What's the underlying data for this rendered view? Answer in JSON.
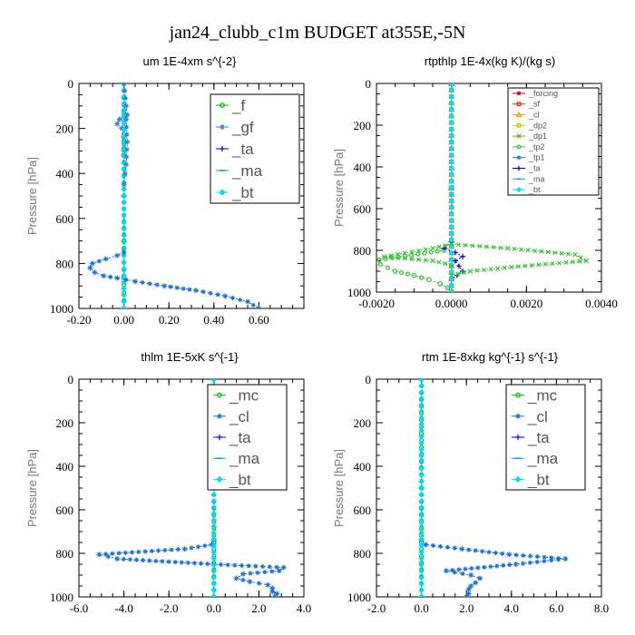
{
  "figure_title": "jan24_clubb_c1m  BUDGET at355E,-5N",
  "chart_data": [
    {
      "type": "line",
      "title": "um  1E-4xm s^{-2}",
      "xlabel": "",
      "ylabel": "Pressure [hPa]",
      "xlim": [
        -0.2,
        0.8
      ],
      "ylim": [
        1000,
        0
      ],
      "y_inverted": true,
      "xticks": [
        -0.2,
        0,
        0.2,
        0.4,
        0.6
      ],
      "xtick_labels": [
        "-0.20",
        "0.00",
        "0.20",
        "0.40",
        "0.60"
      ],
      "yticks": [
        0,
        200,
        400,
        600,
        800,
        1000
      ],
      "ytick_labels": [
        "0",
        "200",
        "400",
        "600",
        "800",
        "1000"
      ],
      "legend_position": "top-right",
      "legend_font": "large",
      "series": [
        {
          "name": "_f",
          "color": "#00c000",
          "marker": "circle",
          "x": [
            0,
            0,
            0,
            0,
            0,
            0,
            0
          ],
          "y": [
            0,
            160,
            320,
            500,
            700,
            860,
            1000
          ]
        },
        {
          "name": "_gf",
          "color": "#2f7fd0",
          "marker": "star",
          "x": [
            0,
            -0.02,
            -0.03,
            -0.01,
            0,
            0
          ],
          "y": [
            120,
            160,
            180,
            200,
            240,
            300
          ]
        },
        {
          "name": "_ta",
          "color": "#0000e0",
          "marker": "plus",
          "x": [
            0,
            0,
            0
          ],
          "y": [
            0,
            500,
            1000
          ]
        },
        {
          "name": "_ma",
          "color": "#00a0ff",
          "marker": "dash",
          "x": [
            0,
            0,
            0
          ],
          "y": [
            0,
            500,
            1000
          ]
        },
        {
          "name": "_bt",
          "color": "#00d8ff",
          "marker": "diamond",
          "x": [
            0,
            0,
            0
          ],
          "y": [
            0,
            500,
            1000
          ]
        },
        {
          "name": "",
          "color": "#1a70d0",
          "marker": "star",
          "x": [
            0,
            -0.03,
            -0.08,
            -0.14,
            -0.15,
            -0.13,
            -0.09,
            -0.03,
            0.05,
            0.18,
            0.32,
            0.45,
            0.55,
            0.6
          ],
          "y": [
            750,
            765,
            780,
            800,
            820,
            840,
            855,
            865,
            880,
            900,
            920,
            945,
            970,
            1000
          ]
        },
        {
          "name": "",
          "color": "#2f7fd0",
          "marker": "star",
          "x": [
            0,
            0.01,
            0.015,
            0.01,
            0.015,
            0.01,
            0.005,
            0
          ],
          "y": [
            0,
            100,
            140,
            160,
            260,
            360,
            400,
            450
          ]
        }
      ]
    },
    {
      "type": "line",
      "title": "rtpthlp  1E-4x(kg K)/(kg s)",
      "xlabel": "",
      "ylabel": "Pressure [hPa]",
      "xlim": [
        -0.002,
        0.004
      ],
      "ylim": [
        1000,
        0
      ],
      "y_inverted": true,
      "xticks": [
        -0.002,
        0,
        0.002,
        0.004
      ],
      "xtick_labels": [
        "-0.0020",
        "0.0000",
        "0.0020",
        "0.0040"
      ],
      "yticks": [
        0,
        200,
        400,
        600,
        800,
        1000
      ],
      "ytick_labels": [
        "0",
        "200",
        "400",
        "600",
        "800",
        "1000"
      ],
      "legend_position": "top-right",
      "legend_font": "small",
      "series": [
        {
          "name": "_forcing",
          "color": "#d00000",
          "marker": "star",
          "x": [
            0,
            0,
            0
          ],
          "y": [
            0,
            500,
            1000
          ]
        },
        {
          "name": "_sf",
          "color": "#e03000",
          "marker": "square",
          "x": [
            0,
            0,
            0
          ],
          "y": [
            0,
            500,
            1000
          ]
        },
        {
          "name": "_cl",
          "color": "#f0a000",
          "marker": "triangle",
          "x": [
            0,
            0,
            0
          ],
          "y": [
            0,
            500,
            1000
          ]
        },
        {
          "name": "_dp2",
          "color": "#d0c000",
          "marker": "square",
          "x": [
            0,
            0,
            0
          ],
          "y": [
            0,
            500,
            1000
          ]
        },
        {
          "name": "_dp1",
          "color": "#70b000",
          "marker": "x",
          "x": [
            0,
            0,
            0
          ],
          "y": [
            0,
            500,
            1000
          ]
        },
        {
          "name": "_tp2",
          "color": "#40c040",
          "marker": "circle",
          "x": [
            0,
            -0.0002,
            -0.0021,
            -0.0015,
            -0.001,
            -0.0006,
            -0.0003,
            -0.0001,
            0
          ],
          "y": [
            780,
            800,
            850,
            900,
            920,
            940,
            960,
            980,
            1000
          ]
        },
        {
          "name": "_tp1",
          "color": "#2080c0",
          "marker": "star",
          "x": [
            0,
            0,
            0
          ],
          "y": [
            0,
            500,
            1000
          ]
        },
        {
          "name": "_ta",
          "color": "#0000c0",
          "marker": "plus",
          "x": [
            0,
            -0.0002,
            0.0001,
            0.0003,
            0.0001,
            0.0003,
            0
          ],
          "y": [
            760,
            790,
            810,
            830,
            850,
            900,
            940
          ]
        },
        {
          "name": "_ma",
          "color": "#00a0ff",
          "marker": "dash",
          "x": [
            0,
            0,
            0
          ],
          "y": [
            0,
            500,
            1000
          ]
        },
        {
          "name": "_bt",
          "color": "#00e0ff",
          "marker": "diamond",
          "x": [
            0,
            0,
            0
          ],
          "y": [
            0,
            500,
            1000
          ]
        },
        {
          "name": "",
          "color": "#40c040",
          "marker": "x",
          "x": [
            0,
            0.0015,
            0.0033,
            0.0036,
            0.0016,
            0.0005,
            0
          ],
          "y": [
            770,
            790,
            820,
            850,
            880,
            900,
            920
          ]
        },
        {
          "name": "",
          "color": "#40c040",
          "marker": "x",
          "x": [
            0,
            -0.0005,
            -0.0018,
            -0.0005,
            0
          ],
          "y": [
            770,
            790,
            830,
            850,
            870
          ]
        }
      ]
    },
    {
      "type": "line",
      "title": "thlm  1E-5xK s^{-1}",
      "xlabel": "",
      "ylabel": "Pressure [hPa]",
      "xlim": [
        -6.0,
        4.0
      ],
      "ylim": [
        1000,
        0
      ],
      "y_inverted": true,
      "xticks": [
        -6,
        -4,
        -2,
        0,
        2,
        4
      ],
      "xtick_labels": [
        "-6.0",
        "-4.0",
        "-2.0",
        "0.0",
        "2.0",
        "4.0"
      ],
      "yticks": [
        0,
        200,
        400,
        600,
        800,
        1000
      ],
      "ytick_labels": [
        "0",
        "200",
        "400",
        "600",
        "800",
        "1000"
      ],
      "legend_position": "top-right",
      "legend_font": "large",
      "series": [
        {
          "name": "_mc",
          "color": "#00c000",
          "marker": "circle",
          "x": [
            0,
            0,
            0,
            0,
            0
          ],
          "y": [
            0,
            250,
            500,
            750,
            1000
          ]
        },
        {
          "name": "_cl",
          "color": "#1a70d0",
          "marker": "star",
          "x": [
            0,
            -0.1,
            -1.3,
            -5.1,
            -4.3,
            0,
            3.1,
            2.9,
            1.3,
            1.0,
            1.6,
            2.4,
            2.6,
            2.6,
            2.8,
            2.7
          ],
          "y": [
            740,
            760,
            780,
            805,
            825,
            850,
            865,
            880,
            895,
            915,
            930,
            945,
            960,
            975,
            985,
            1000
          ]
        },
        {
          "name": "_ta",
          "color": "#0000e0",
          "marker": "plus",
          "x": [
            0,
            0,
            0
          ],
          "y": [
            0,
            500,
            1000
          ]
        },
        {
          "name": "_ma",
          "color": "#00a0ff",
          "marker": "dash",
          "x": [
            0,
            0,
            0
          ],
          "y": [
            0,
            500,
            1000
          ]
        },
        {
          "name": "_bt",
          "color": "#00d8ff",
          "marker": "diamond",
          "x": [
            0,
            0,
            0
          ],
          "y": [
            0,
            500,
            1000
          ]
        }
      ]
    },
    {
      "type": "line",
      "title": "rtm  1E-8xkg kg^{-1} s^{-1}",
      "xlabel": "",
      "ylabel": "Pressure [hPa]",
      "xlim": [
        -2.0,
        8.0
      ],
      "ylim": [
        1000,
        0
      ],
      "y_inverted": true,
      "xticks": [
        -2,
        0,
        2,
        4,
        6,
        8
      ],
      "xtick_labels": [
        "-2.0",
        "0.0",
        "2.0",
        "4.0",
        "6.0",
        "8.0"
      ],
      "yticks": [
        0,
        200,
        400,
        600,
        800,
        1000
      ],
      "ytick_labels": [
        "0",
        "200",
        "400",
        "600",
        "800",
        "1000"
      ],
      "legend_position": "top-right",
      "legend_font": "large",
      "series": [
        {
          "name": "_mc",
          "color": "#00c000",
          "marker": "circle",
          "x": [
            0,
            0,
            0,
            0,
            0
          ],
          "y": [
            0,
            250,
            500,
            750,
            1000
          ]
        },
        {
          "name": "_cl",
          "color": "#1a70d0",
          "marker": "star",
          "x": [
            0,
            0.2,
            1.8,
            3.9,
            6.4,
            4.2,
            1.1,
            2.2,
            2.6,
            2.4,
            2.2,
            2.1,
            2.1,
            2.0
          ],
          "y": [
            740,
            760,
            780,
            805,
            825,
            850,
            880,
            900,
            915,
            935,
            950,
            965,
            985,
            1000
          ]
        },
        {
          "name": "_ta",
          "color": "#0000e0",
          "marker": "plus",
          "x": [
            0,
            0,
            0
          ],
          "y": [
            0,
            500,
            1000
          ]
        },
        {
          "name": "_ma",
          "color": "#00a0ff",
          "marker": "dash",
          "x": [
            0,
            0,
            0
          ],
          "y": [
            0,
            500,
            1000
          ]
        },
        {
          "name": "_bt",
          "color": "#00d8ff",
          "marker": "diamond",
          "x": [
            0,
            0,
            0
          ],
          "y": [
            0,
            500,
            1000
          ]
        }
      ]
    }
  ]
}
